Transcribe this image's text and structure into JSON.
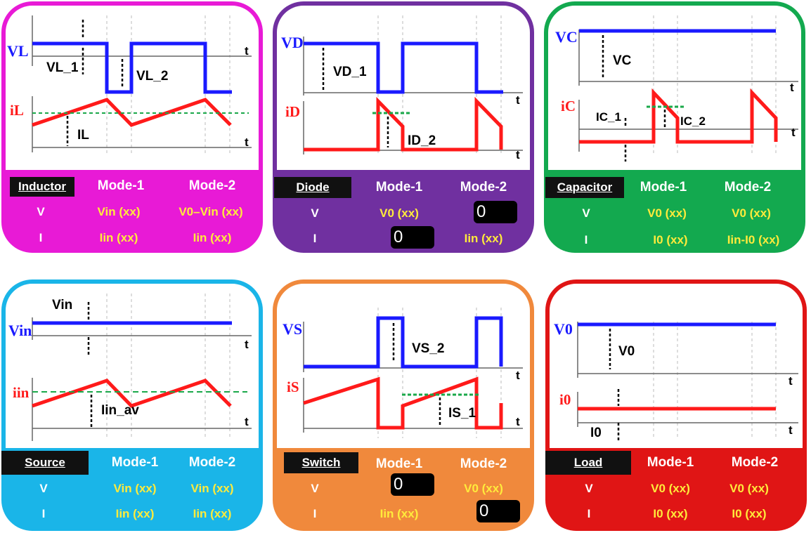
{
  "panels": {
    "inductor": {
      "name": "Inductor",
      "mode1": "Mode-1",
      "mode2": "Mode-2",
      "row_v": "V",
      "row_i": "I",
      "v_mode1": "Vin (xx)",
      "v_mode2": "V0–Vin (xx)",
      "i_mode1": "Iin (xx)",
      "i_mode2": "Iin (xx)",
      "v_wave_label": "VL",
      "i_wave_label": "iL",
      "ann1": "VL_1",
      "ann2": "VL_2",
      "ann3": "IL",
      "t": "t",
      "color": "#e81ad6",
      "accent": "#c600c6"
    },
    "diode": {
      "name": "Diode",
      "mode1": "Mode-1",
      "mode2": "Mode-2",
      "row_v": "V",
      "row_i": "I",
      "v_mode1": "V0 (xx)",
      "v_mode2": "0",
      "i_mode1": "0",
      "i_mode2": "Iin (xx)",
      "v_wave_label": "VD",
      "i_wave_label": "iD",
      "ann1": "VD_1",
      "ann2": "ID_2",
      "t": "t",
      "color": "#7030a0"
    },
    "capacitor": {
      "name": "Capacitor",
      "mode1": "Mode-1",
      "mode2": "Mode-2",
      "row_v": "V",
      "row_i": "I",
      "v_mode1": "V0 (xx)",
      "v_mode2": "V0 (xx)",
      "i_mode1": "I0 (xx)",
      "i_mode2": "Iin-I0 (xx)",
      "v_wave_label": "VC",
      "i_wave_label": "iC",
      "ann1": "VC",
      "ann2": "IC_1",
      "ann3": "IC_2",
      "t": "t",
      "color": "#13a94f"
    },
    "source": {
      "name": "Source",
      "mode1": "Mode-1",
      "mode2": "Mode-2",
      "row_v": "V",
      "row_i": "I",
      "v_mode1": "Vin (xx)",
      "v_mode2": "Vin (xx)",
      "i_mode1": "Iin (xx)",
      "i_mode2": "Iin (xx)",
      "v_wave_label": "Vin",
      "i_wave_label": "iin",
      "ann1": "Vin",
      "ann2": "Iin_av",
      "t": "t",
      "color": "#1ab5e8"
    },
    "switch": {
      "name": "Switch",
      "mode1": "Mode-1",
      "mode2": "Mode-2",
      "row_v": "V",
      "row_i": "I",
      "v_mode1": "0",
      "v_mode2": "V0 (xx)",
      "i_mode1": "Iin (xx)",
      "i_mode2": "0",
      "v_wave_label": "VS",
      "i_wave_label": "iS",
      "ann1": "VS_2",
      "ann2": "IS_1",
      "t": "t",
      "color": "#f0893c"
    },
    "load": {
      "name": "Load",
      "mode1": "Mode-1",
      "mode2": "Mode-2",
      "row_v": "V",
      "row_i": "I",
      "v_mode1": "V0 (xx)",
      "v_mode2": "V0 (xx)",
      "i_mode1": "I0 (xx)",
      "i_mode2": "I0 (xx)",
      "v_wave_label": "V0",
      "i_wave_label": "i0",
      "ann1": "V0",
      "ann2": "I0",
      "t": "t",
      "color": "#e01515"
    }
  }
}
